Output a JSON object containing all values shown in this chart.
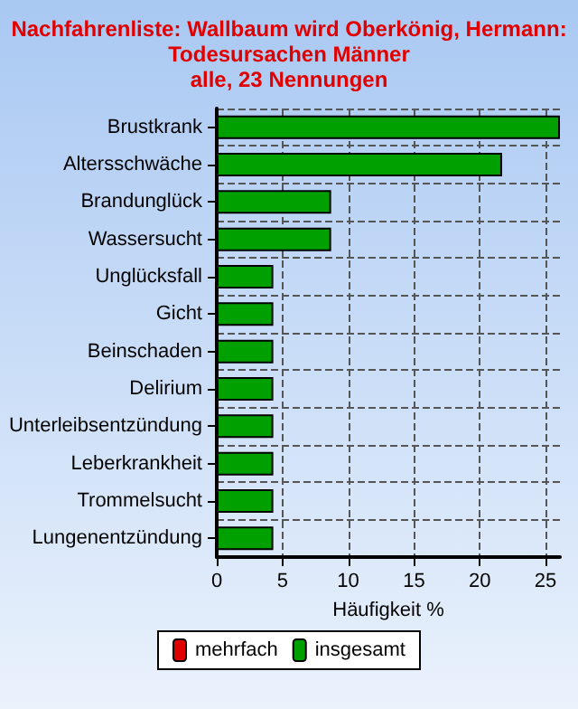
{
  "chart_data": {
    "type": "bar",
    "orientation": "horizontal",
    "title": "Nachfahrenliste: Wallbaum wird Oberkönig, Hermann:\nTodesursachen Männer\nalle, 23 Nennungen",
    "xlabel": "Häufigkeit %",
    "categories": [
      "Brustkrank",
      "Altersschwäche",
      "Brandunglück",
      "Wassersucht",
      "Unglücksfall",
      "Gicht",
      "Beinschaden",
      "Delirium",
      "Unterleibsentzündung",
      "Leberkrankheit",
      "Trommelsucht",
      "Lungenentzündung"
    ],
    "series": [
      {
        "name": "mehrfach",
        "color": "#e00000",
        "values": [
          null,
          null,
          null,
          null,
          null,
          null,
          null,
          null,
          null,
          null,
          null,
          null
        ]
      },
      {
        "name": "insgesamt",
        "color": "#00a000",
        "values": [
          26.1,
          21.7,
          8.7,
          8.7,
          4.3,
          4.3,
          4.3,
          4.3,
          4.3,
          4.3,
          4.3,
          4.3
        ]
      }
    ],
    "xlim": [
      0,
      26.1
    ],
    "xticks": [
      0,
      5,
      10,
      15,
      20,
      25
    ],
    "grid": true,
    "legend": "bottom"
  }
}
